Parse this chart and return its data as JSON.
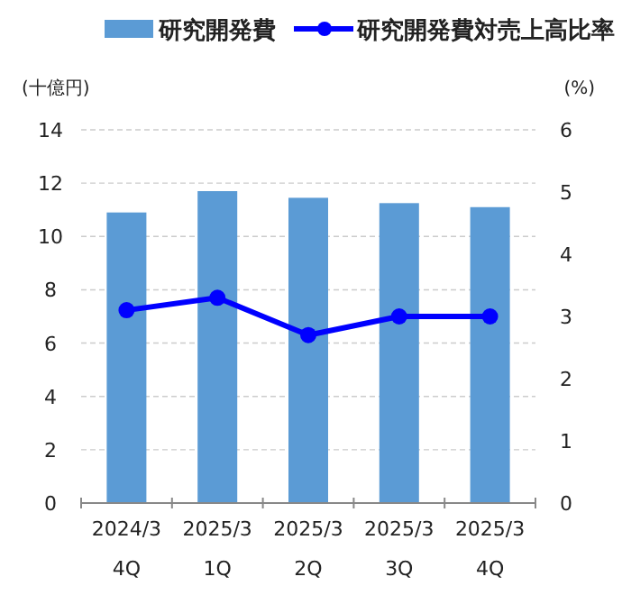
{
  "chart_data": {
    "type": "bar",
    "categories": [
      "2024/3\n4Q",
      "2025/3\n1Q",
      "2025/3\n2Q",
      "2025/3\n3Q",
      "2025/3\n4Q"
    ],
    "series": [
      {
        "name": "研究開発費",
        "color": "#5b9bd5",
        "values": [
          10.9,
          11.7,
          11.45,
          11.25,
          11.1
        ]
      },
      {
        "name": "研究開発費対売上高比率",
        "type": "line",
        "axis": "y2",
        "color": "#0000ff",
        "marker": "circle",
        "values": [
          3.1,
          3.3,
          2.7,
          3.0,
          3.0
        ]
      }
    ],
    "ylabel": "(十億円)",
    "y2label": "(%)",
    "ylim": [
      0,
      14
    ],
    "yticks": [
      0,
      2,
      4,
      6,
      8,
      10,
      12,
      14
    ],
    "y2lim": [
      0,
      6
    ],
    "y2ticks": [
      0,
      1,
      2,
      3,
      4,
      5,
      6
    ],
    "grid": "y",
    "legend": "top"
  }
}
